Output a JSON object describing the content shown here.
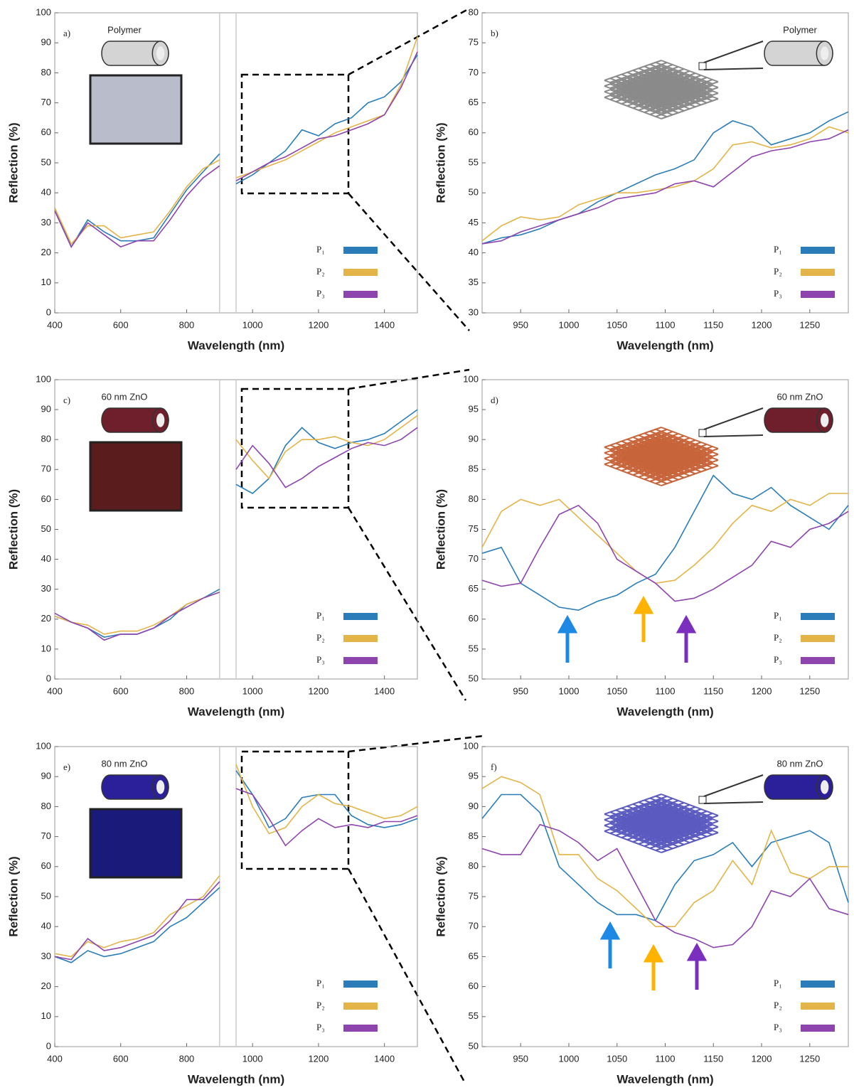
{
  "chart_data": [
    {
      "type": "line",
      "label": "a)",
      "inset_label": "Polymer",
      "xlabel": "Wavelength (nm)",
      "ylabel": "Reflection (%)",
      "x": [
        400,
        450,
        500,
        550,
        600,
        650,
        700,
        750,
        800,
        850,
        900,
        925,
        950,
        1000,
        1050,
        1100,
        1150,
        1200,
        1250,
        1300,
        1350,
        1400,
        1450,
        1500
      ],
      "xlim": [
        400,
        1500
      ],
      "xticks": [
        400,
        600,
        800,
        1000,
        1200,
        1400
      ],
      "ylim": [
        0,
        100
      ],
      "yticks": [
        0,
        10,
        20,
        30,
        40,
        50,
        60,
        70,
        80,
        90,
        100
      ],
      "series": [
        {
          "name": "P₁",
          "color": "#2a7db8",
          "values": [
            35,
            22,
            31,
            27,
            24,
            24,
            25,
            33,
            41,
            47,
            53,
            null,
            43,
            46,
            50,
            54,
            61,
            59,
            63,
            65,
            70,
            72,
            77,
            86
          ]
        },
        {
          "name": "P₂",
          "color": "#e3b448",
          "values": [
            35,
            23,
            29,
            29,
            25,
            26,
            27,
            34,
            42,
            48,
            51,
            null,
            45,
            47,
            49,
            51,
            54,
            57,
            60,
            62,
            64,
            66,
            76,
            92
          ]
        },
        {
          "name": "P₃",
          "color": "#8e44ad",
          "values": [
            34,
            22,
            30,
            26,
            22,
            24,
            24,
            31,
            39,
            45,
            49,
            null,
            44,
            47,
            50,
            52,
            55,
            58,
            59,
            61,
            63,
            66,
            75,
            87
          ]
        }
      ]
    },
    {
      "type": "line",
      "label": "b)",
      "inset_label": "Polymer",
      "xlabel": "Wavelength (nm)",
      "ylabel": "Reflection (%)",
      "x": [
        910,
        930,
        950,
        970,
        990,
        1010,
        1030,
        1050,
        1070,
        1090,
        1110,
        1130,
        1150,
        1170,
        1190,
        1210,
        1230,
        1250,
        1270,
        1290
      ],
      "xlim": [
        910,
        1290
      ],
      "xticks": [
        950,
        1000,
        1050,
        1100,
        1150,
        1200,
        1250
      ],
      "ylim": [
        30,
        80
      ],
      "yticks": [
        30,
        35,
        40,
        45,
        50,
        55,
        60,
        65,
        70,
        75,
        80
      ],
      "series": [
        {
          "name": "P₁",
          "color": "#2a7db8",
          "values": [
            41.5,
            42.5,
            43,
            44,
            45.5,
            46.5,
            48.5,
            50,
            51.5,
            53,
            54,
            55.5,
            60,
            62,
            61,
            58,
            59,
            60,
            62,
            63.5
          ]
        },
        {
          "name": "P₂",
          "color": "#e3b448",
          "values": [
            42,
            44.5,
            46,
            45.5,
            46,
            48,
            49,
            50,
            50,
            50.5,
            51,
            52,
            54,
            58,
            58.5,
            57.5,
            58,
            59,
            61,
            60
          ]
        },
        {
          "name": "P₃",
          "color": "#8e44ad",
          "values": [
            41.5,
            42,
            43.5,
            44.5,
            45.5,
            46.5,
            47.5,
            49,
            49.5,
            50,
            51.5,
            52,
            51,
            53.5,
            56,
            57,
            57.5,
            58.5,
            59,
            60.5
          ]
        }
      ]
    },
    {
      "type": "line",
      "label": "c)",
      "inset_label": "60 nm ZnO",
      "xlabel": "Wavelength (nm)",
      "ylabel": "Reflection (%)",
      "x": [
        400,
        450,
        500,
        550,
        600,
        650,
        700,
        750,
        800,
        850,
        900,
        925,
        950,
        1000,
        1050,
        1100,
        1150,
        1200,
        1250,
        1300,
        1350,
        1400,
        1450,
        1500
      ],
      "xlim": [
        400,
        1500
      ],
      "xticks": [
        400,
        600,
        800,
        1000,
        1200,
        1400
      ],
      "ylim": [
        0,
        100
      ],
      "yticks": [
        0,
        10,
        20,
        30,
        40,
        50,
        60,
        70,
        80,
        90,
        100
      ],
      "series": [
        {
          "name": "P₁",
          "color": "#2a7db8",
          "values": [
            21,
            19,
            17,
            14,
            15,
            15,
            17,
            20,
            25,
            27,
            30,
            null,
            65,
            62,
            67,
            78,
            84,
            79,
            77,
            79,
            80,
            82,
            86,
            90
          ]
        },
        {
          "name": "P₂",
          "color": "#e3b448",
          "values": [
            21,
            19,
            18,
            15,
            16,
            16,
            18,
            21,
            25,
            27,
            29,
            null,
            80,
            73,
            67,
            76,
            80,
            80,
            81,
            79,
            78,
            80,
            84,
            88
          ]
        },
        {
          "name": "P₃",
          "color": "#8e44ad",
          "values": [
            22,
            19,
            17,
            13,
            15,
            15,
            17,
            21,
            24,
            27,
            29,
            null,
            70,
            78,
            72,
            64,
            67,
            71,
            74,
            77,
            79,
            78,
            80,
            84
          ]
        }
      ]
    },
    {
      "type": "line",
      "label": "d)",
      "inset_label": "60 nm ZnO",
      "xlabel": "Wavelength (nm)",
      "ylabel": "Reflection (%)",
      "x": [
        910,
        930,
        950,
        970,
        990,
        1010,
        1030,
        1050,
        1070,
        1090,
        1110,
        1130,
        1150,
        1170,
        1190,
        1210,
        1230,
        1250,
        1270,
        1290
      ],
      "xlim": [
        910,
        1290
      ],
      "xticks": [
        950,
        1000,
        1050,
        1100,
        1150,
        1200,
        1250
      ],
      "ylim": [
        50,
        100
      ],
      "yticks": [
        50,
        55,
        60,
        65,
        70,
        75,
        80,
        85,
        90,
        95,
        100
      ],
      "series": [
        {
          "name": "P₁",
          "color": "#2a7db8",
          "values": [
            71,
            72,
            66,
            64,
            62,
            61.5,
            63,
            64,
            66,
            67.5,
            72,
            78,
            84,
            81,
            80,
            82,
            79,
            77,
            75,
            79
          ]
        },
        {
          "name": "P₂",
          "color": "#e3b448",
          "values": [
            72,
            78,
            80,
            79,
            80,
            77,
            74,
            71,
            68,
            66,
            66.5,
            69,
            72,
            76,
            79,
            78,
            80,
            79,
            81,
            81
          ]
        },
        {
          "name": "P₃",
          "color": "#8e44ad",
          "values": [
            66.5,
            65.5,
            66,
            72,
            77.5,
            79,
            76,
            70,
            68,
            66,
            63,
            63.5,
            65,
            67,
            69,
            73,
            72,
            75,
            76,
            78
          ]
        }
      ]
    },
    {
      "type": "line",
      "label": "e)",
      "inset_label": "80 nm ZnO",
      "xlabel": "Wavelength (nm)",
      "ylabel": "Reflection (%)",
      "x": [
        400,
        450,
        500,
        550,
        600,
        650,
        700,
        750,
        800,
        850,
        900,
        925,
        950,
        1000,
        1050,
        1100,
        1150,
        1200,
        1250,
        1300,
        1350,
        1400,
        1450,
        1500
      ],
      "xlim": [
        400,
        1500
      ],
      "xticks": [
        400,
        600,
        800,
        1000,
        1200,
        1400
      ],
      "ylim": [
        0,
        100
      ],
      "yticks": [
        0,
        10,
        20,
        30,
        40,
        50,
        60,
        70,
        80,
        90,
        100
      ],
      "series": [
        {
          "name": "P₁",
          "color": "#2a7db8",
          "values": [
            30,
            28,
            32,
            30,
            31,
            33,
            35,
            40,
            43,
            48,
            53,
            null,
            92,
            84,
            73,
            76,
            83,
            84,
            84,
            77,
            74,
            73,
            74,
            76
          ]
        },
        {
          "name": "P₂",
          "color": "#e3b448",
          "values": [
            31,
            30,
            35,
            33,
            35,
            36,
            38,
            44,
            47,
            50,
            57,
            null,
            94,
            80,
            71,
            73,
            80,
            84,
            81,
            80,
            78,
            76,
            77,
            80
          ]
        },
        {
          "name": "P₃",
          "color": "#8e44ad",
          "values": [
            30,
            29,
            36,
            32,
            33,
            35,
            37,
            42,
            49,
            49,
            55,
            null,
            86,
            84,
            76,
            67,
            72,
            76,
            73,
            74,
            73,
            75,
            75,
            77
          ]
        }
      ]
    },
    {
      "type": "line",
      "label": "f)",
      "inset_label": "80 nm ZnO",
      "xlabel": "Wavelength (nm)",
      "ylabel": "Reflection (%)",
      "x": [
        910,
        930,
        950,
        970,
        990,
        1010,
        1030,
        1050,
        1070,
        1090,
        1110,
        1130,
        1150,
        1170,
        1190,
        1210,
        1230,
        1250,
        1270,
        1290
      ],
      "xlim": [
        910,
        1290
      ],
      "xticks": [
        950,
        1000,
        1050,
        1100,
        1150,
        1200,
        1250
      ],
      "ylim": [
        50,
        100
      ],
      "yticks": [
        50,
        55,
        60,
        65,
        70,
        75,
        80,
        85,
        90,
        95,
        100
      ],
      "series": [
        {
          "name": "P₁",
          "color": "#2a7db8",
          "values": [
            88,
            92,
            92,
            89,
            80,
            77,
            74,
            72,
            72,
            71,
            77,
            81,
            82,
            84,
            80,
            84,
            85,
            86,
            84,
            74
          ]
        },
        {
          "name": "P₂",
          "color": "#e3b448",
          "values": [
            93,
            95,
            94,
            92,
            82,
            82,
            78,
            76,
            73,
            70,
            70,
            74,
            76,
            81,
            77,
            86,
            79,
            78,
            80,
            80
          ]
        },
        {
          "name": "P₃",
          "color": "#8e44ad",
          "values": [
            83,
            82,
            82,
            87,
            86,
            84,
            81,
            83,
            77,
            71,
            69,
            68,
            66.5,
            67,
            70,
            76,
            75,
            78,
            73,
            72
          ]
        }
      ]
    }
  ]
}
